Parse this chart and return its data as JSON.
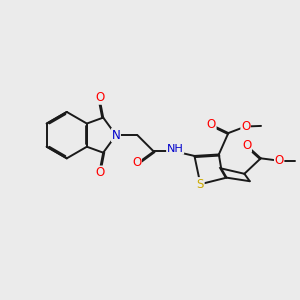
{
  "bg_color": "#ebebeb",
  "bond_color": "#1a1a1a",
  "bond_lw": 1.4,
  "dbo": 0.045,
  "atom_colors": {
    "O": "#ff0000",
    "N": "#0000cc",
    "S": "#ccaa00",
    "H": "#4a9a8a",
    "C": "#1a1a1a"
  },
  "fs": 8.5,
  "figsize": [
    3.0,
    3.0
  ],
  "dpi": 100,
  "xlim": [
    0,
    10
  ],
  "ylim": [
    0,
    10
  ]
}
